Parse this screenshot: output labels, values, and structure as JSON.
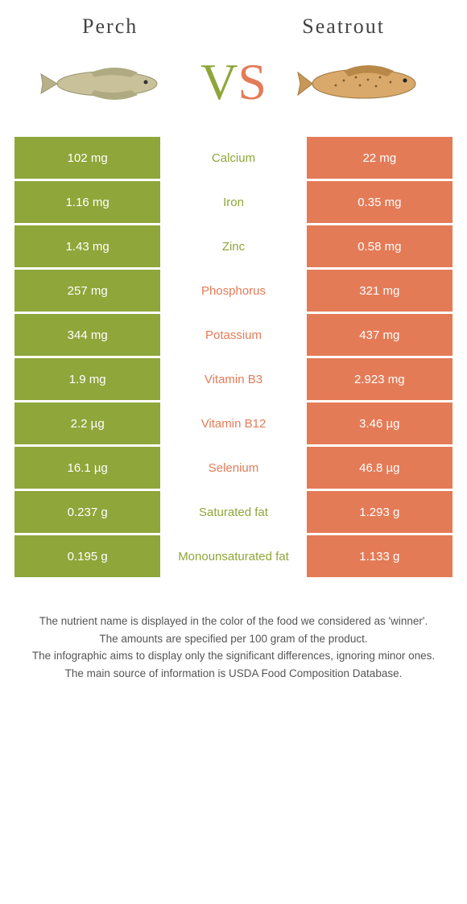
{
  "header": {
    "left_title": "Perch",
    "right_title": "Seatrout"
  },
  "vs": {
    "v": "V",
    "s": "S"
  },
  "colors": {
    "green": "#8fa63a",
    "orange": "#e47b57",
    "background": "#ffffff"
  },
  "table": {
    "rows": [
      {
        "left": "102 mg",
        "label": "Calcium",
        "right": "22 mg",
        "winner": "left"
      },
      {
        "left": "1.16 mg",
        "label": "Iron",
        "right": "0.35 mg",
        "winner": "left"
      },
      {
        "left": "1.43 mg",
        "label": "Zinc",
        "right": "0.58 mg",
        "winner": "left"
      },
      {
        "left": "257 mg",
        "label": "Phosphorus",
        "right": "321 mg",
        "winner": "right"
      },
      {
        "left": "344 mg",
        "label": "Potassium",
        "right": "437 mg",
        "winner": "right"
      },
      {
        "left": "1.9 mg",
        "label": "Vitamin B3",
        "right": "2.923 mg",
        "winner": "right"
      },
      {
        "left": "2.2 µg",
        "label": "Vitamin B12",
        "right": "3.46 µg",
        "winner": "right"
      },
      {
        "left": "16.1 µg",
        "label": "Selenium",
        "right": "46.8 µg",
        "winner": "right"
      },
      {
        "left": "0.237 g",
        "label": "Saturated fat",
        "right": "1.293 g",
        "winner": "left"
      },
      {
        "left": "0.195 g",
        "label": "Monounsaturated fat",
        "right": "1.133 g",
        "winner": "left"
      }
    ]
  },
  "footer": {
    "line1": "The nutrient name is displayed in the color of the food we considered as 'winner'.",
    "line2": "The amounts are specified per 100 gram of the product.",
    "line3": "The infographic aims to display only the significant differences, ignoring minor ones.",
    "line4": "The main source of information is USDA Food Composition Database."
  }
}
